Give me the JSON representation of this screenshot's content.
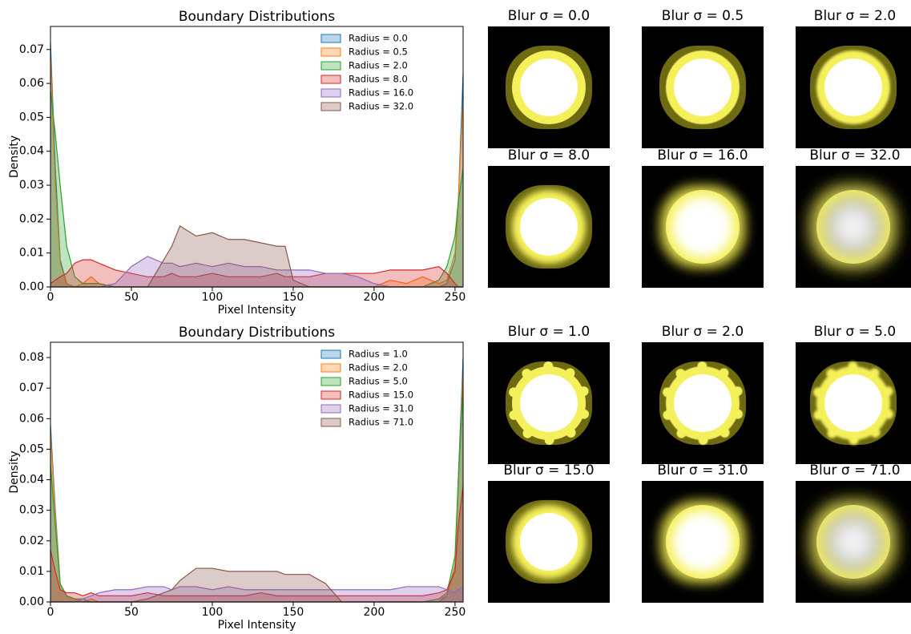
{
  "chart_data": [
    {
      "type": "area",
      "title": "Boundary Distributions",
      "xlabel": "Pixel Intensity",
      "ylabel": "Density",
      "x": [
        0,
        3,
        6,
        10,
        15,
        20,
        25,
        30,
        40,
        50,
        60,
        70,
        75,
        80,
        90,
        100,
        110,
        120,
        130,
        140,
        145,
        150,
        160,
        170,
        180,
        190,
        200,
        210,
        220,
        230,
        240,
        245,
        250,
        252,
        255
      ],
      "series": [
        {
          "name": "Radius = 0.0",
          "color": "#1f77b4",
          "values": [
            0.072,
            0.035,
            0.008,
            0.001,
            0,
            0,
            0,
            0,
            0,
            0,
            0,
            0,
            0,
            0,
            0,
            0,
            0,
            0,
            0,
            0,
            0,
            0,
            0,
            0,
            0,
            0,
            0,
            0,
            0,
            0,
            0,
            0.001,
            0.008,
            0.025,
            0.063
          ]
        },
        {
          "name": "Radius = 0.5",
          "color": "#ff7f0e",
          "values": [
            0.068,
            0.03,
            0.007,
            0.001,
            0,
            0.001,
            0.003,
            0.001,
            0,
            0,
            0,
            0,
            0,
            0,
            0,
            0,
            0,
            0,
            0,
            0,
            0,
            0,
            0,
            0,
            0,
            0,
            0,
            0.002,
            0.001,
            0.003,
            0.001,
            0.002,
            0.01,
            0.025,
            0.055
          ]
        },
        {
          "name": "Radius = 2.0",
          "color": "#2ca02c",
          "values": [
            0.058,
            0.045,
            0.03,
            0.012,
            0.003,
            0.001,
            0.001,
            0.001,
            0,
            0,
            0,
            0,
            0,
            0,
            0,
            0,
            0,
            0,
            0,
            0,
            0,
            0,
            0,
            0,
            0,
            0,
            0,
            0,
            0,
            0,
            0.002,
            0.006,
            0.015,
            0.025,
            0.035
          ]
        },
        {
          "name": "Radius = 8.0",
          "color": "#d62728",
          "values": [
            0.001,
            0.002,
            0.003,
            0.004,
            0.007,
            0.008,
            0.008,
            0.007,
            0.005,
            0.004,
            0.003,
            0.003,
            0.004,
            0.003,
            0.003,
            0.004,
            0.003,
            0.003,
            0.003,
            0.004,
            0.003,
            0.003,
            0.003,
            0.004,
            0.004,
            0.004,
            0.004,
            0.005,
            0.005,
            0.005,
            0.006,
            0.004,
            0.001,
            0,
            0
          ]
        },
        {
          "name": "Radius = 16.0",
          "color": "#9467bd",
          "values": [
            0,
            0,
            0,
            0,
            0,
            0,
            0,
            0,
            0.001,
            0.006,
            0.009,
            0.007,
            0.007,
            0.006,
            0.007,
            0.006,
            0.007,
            0.006,
            0.006,
            0.005,
            0.005,
            0.005,
            0.005,
            0.004,
            0.004,
            0.003,
            0.001,
            0,
            0,
            0,
            0,
            0,
            0,
            0,
            0
          ]
        },
        {
          "name": "Radius = 32.0",
          "color": "#8c564b",
          "values": [
            0,
            0,
            0,
            0,
            0,
            0,
            0,
            0,
            0,
            0,
            0,
            0.008,
            0.012,
            0.018,
            0.015,
            0.016,
            0.014,
            0.014,
            0.013,
            0.012,
            0.012,
            0.002,
            0,
            0,
            0,
            0,
            0,
            0,
            0,
            0,
            0,
            0,
            0,
            0,
            0
          ]
        }
      ],
      "xlim": [
        0,
        255
      ],
      "xticks": [
        0,
        50,
        100,
        150,
        200,
        250
      ],
      "ylim": [
        0,
        0.0768
      ],
      "yticks": [
        {
          "value": 0,
          "label": "0.00"
        },
        {
          "value": 0.01,
          "label": "0.01"
        },
        {
          "value": 0.02,
          "label": "0.02"
        },
        {
          "value": 0.03,
          "label": "0.03"
        },
        {
          "value": 0.04,
          "label": "0.04"
        },
        {
          "value": 0.05,
          "label": "0.05"
        },
        {
          "value": 0.06,
          "label": "0.06"
        },
        {
          "value": 0.07,
          "label": "0.07"
        }
      ],
      "legend": "upper right"
    },
    {
      "type": "area",
      "title": "Boundary Distributions",
      "xlabel": "Pixel Intensity",
      "ylabel": "Density",
      "x": [
        0,
        3,
        6,
        10,
        15,
        20,
        25,
        30,
        40,
        50,
        60,
        70,
        75,
        80,
        90,
        100,
        110,
        120,
        130,
        140,
        145,
        150,
        160,
        170,
        180,
        190,
        200,
        210,
        220,
        230,
        240,
        245,
        250,
        252,
        255
      ],
      "series": [
        {
          "name": "Radius = 1.0",
          "color": "#1f77b4",
          "values": [
            0.058,
            0.03,
            0.006,
            0.002,
            0.001,
            0,
            0,
            0,
            0,
            0,
            0,
            0,
            0,
            0,
            0,
            0,
            0,
            0,
            0,
            0,
            0,
            0,
            0,
            0,
            0,
            0,
            0,
            0,
            0,
            0,
            0,
            0.002,
            0.012,
            0.04,
            0.08
          ]
        },
        {
          "name": "Radius = 2.0",
          "color": "#ff7f0e",
          "values": [
            0.055,
            0.028,
            0.006,
            0.002,
            0.001,
            0,
            0.001,
            0,
            0,
            0,
            0,
            0,
            0,
            0,
            0,
            0,
            0,
            0,
            0,
            0,
            0,
            0,
            0,
            0,
            0,
            0,
            0,
            0,
            0,
            0,
            0.001,
            0.002,
            0.012,
            0.038,
            0.075
          ]
        },
        {
          "name": "Radius = 5.0",
          "color": "#2ca02c",
          "values": [
            0.045,
            0.025,
            0.006,
            0.002,
            0.001,
            0.001,
            0,
            0,
            0,
            0,
            0,
            0,
            0,
            0,
            0,
            0,
            0,
            0,
            0,
            0,
            0,
            0,
            0,
            0,
            0,
            0,
            0,
            0,
            0,
            0,
            0.001,
            0.003,
            0.015,
            0.04,
            0.07
          ]
        },
        {
          "name": "Radius = 15.0",
          "color": "#d62728",
          "values": [
            0.017,
            0.01,
            0.004,
            0.003,
            0.003,
            0.002,
            0.003,
            0.002,
            0.002,
            0.002,
            0.003,
            0.002,
            0.002,
            0.002,
            0.002,
            0.002,
            0.002,
            0.002,
            0.003,
            0.002,
            0.002,
            0.002,
            0.002,
            0.002,
            0.002,
            0.002,
            0.002,
            0.002,
            0.002,
            0.002,
            0.003,
            0.004,
            0.01,
            0.025,
            0.038
          ]
        },
        {
          "name": "Radius = 31.0",
          "color": "#9467bd",
          "values": [
            0,
            0,
            0,
            0,
            0,
            0.001,
            0.002,
            0.003,
            0.004,
            0.004,
            0.005,
            0.005,
            0.004,
            0.005,
            0.005,
            0.004,
            0.005,
            0.004,
            0.004,
            0.004,
            0.004,
            0.004,
            0.004,
            0.004,
            0.004,
            0.004,
            0.004,
            0.004,
            0.005,
            0.005,
            0.005,
            0.004,
            0.003,
            0.004,
            0.005
          ]
        },
        {
          "name": "Radius = 71.0",
          "color": "#8c564b",
          "values": [
            0,
            0,
            0,
            0,
            0,
            0,
            0,
            0,
            0,
            0,
            0.001,
            0.003,
            0.004,
            0.007,
            0.011,
            0.011,
            0.01,
            0.01,
            0.01,
            0.01,
            0.009,
            0.009,
            0.009,
            0.006,
            0,
            0,
            0,
            0,
            0,
            0,
            0,
            0,
            0,
            0,
            0
          ]
        }
      ],
      "xlim": [
        0,
        255
      ],
      "xticks": [
        0,
        50,
        100,
        150,
        200,
        250
      ],
      "ylim": [
        0,
        0.085
      ],
      "yticks": [
        {
          "value": 0,
          "label": "0.00"
        },
        {
          "value": 0.01,
          "label": "0.01"
        },
        {
          "value": 0.02,
          "label": "0.02"
        },
        {
          "value": 0.03,
          "label": "0.03"
        },
        {
          "value": 0.04,
          "label": "0.04"
        },
        {
          "value": 0.05,
          "label": "0.05"
        },
        {
          "value": 0.06,
          "label": "0.06"
        },
        {
          "value": 0.07,
          "label": "0.07"
        },
        {
          "value": 0.08,
          "label": "0.08"
        }
      ],
      "legend": "upper right"
    }
  ],
  "image_panels": [
    [
      "Blur σ = 0.0",
      "Blur σ = 0.5",
      "Blur σ = 2.0",
      "Blur σ = 8.0",
      "Blur σ = 16.0",
      "Blur σ = 32.0"
    ],
    [
      "Blur σ = 1.0",
      "Blur σ = 2.0",
      "Blur σ = 5.0",
      "Blur σ = 15.0",
      "Blur σ = 31.0",
      "Blur σ = 71.0"
    ]
  ]
}
